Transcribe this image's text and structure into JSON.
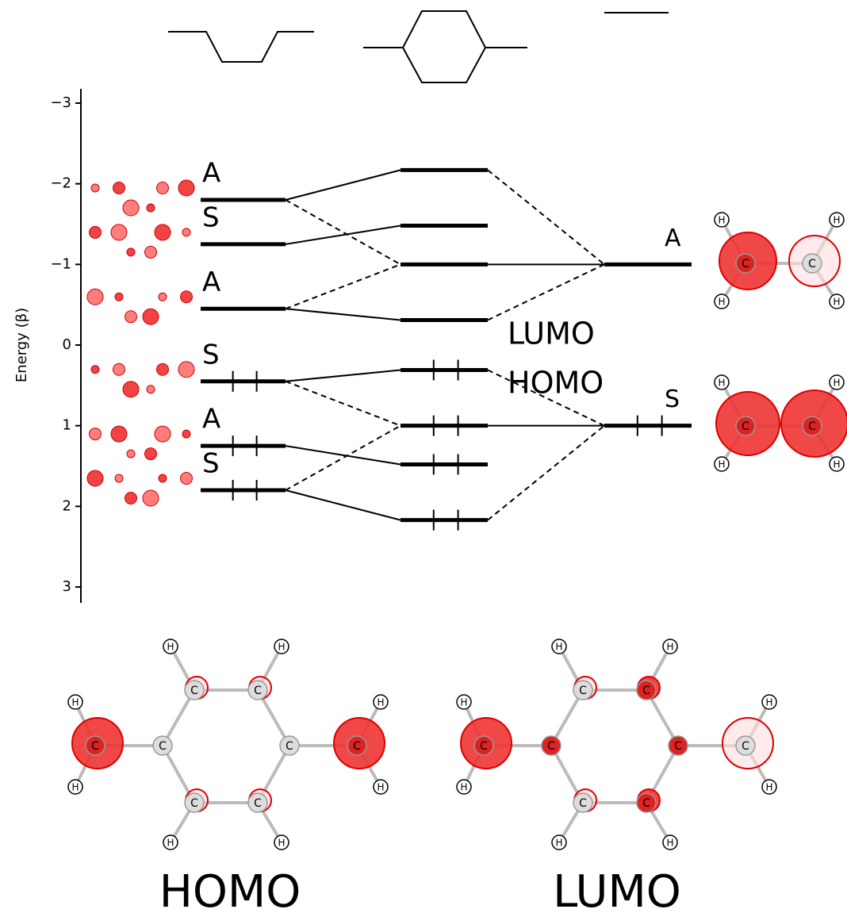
{
  "axis": {
    "label": "Energy (β)",
    "ylim": [
      -3,
      3
    ],
    "yticks": [
      {
        "value": -3,
        "label": "−3"
      },
      {
        "value": -2,
        "label": "−2"
      },
      {
        "value": -1,
        "label": "−1"
      },
      0,
      1,
      2,
      3
    ]
  },
  "left_levels": {
    "energies": [
      -1.8,
      -1.25,
      -0.45,
      0.45,
      1.25,
      1.8
    ],
    "labels": [
      "A",
      "S",
      "A",
      "S",
      "A",
      "S"
    ],
    "electrons": [
      0,
      0,
      0,
      2,
      2,
      2
    ]
  },
  "middle_levels": {
    "energies": [
      -2.17,
      -1.48,
      -1,
      -0.31,
      0.31,
      1,
      1.48,
      2.17
    ],
    "electrons": [
      0,
      0,
      0,
      0,
      2,
      2,
      2,
      2
    ]
  },
  "right_levels": {
    "energies": [
      -1,
      1
    ],
    "labels": [
      "A",
      "S"
    ],
    "electrons": [
      0,
      2
    ]
  },
  "frontier_labels": [
    "LUMO",
    "HOMO"
  ],
  "orbital_titles": [
    "HOMO",
    "LUMO"
  ],
  "atom_labels": {
    "carbon": "C",
    "hydrogen": "H"
  }
}
